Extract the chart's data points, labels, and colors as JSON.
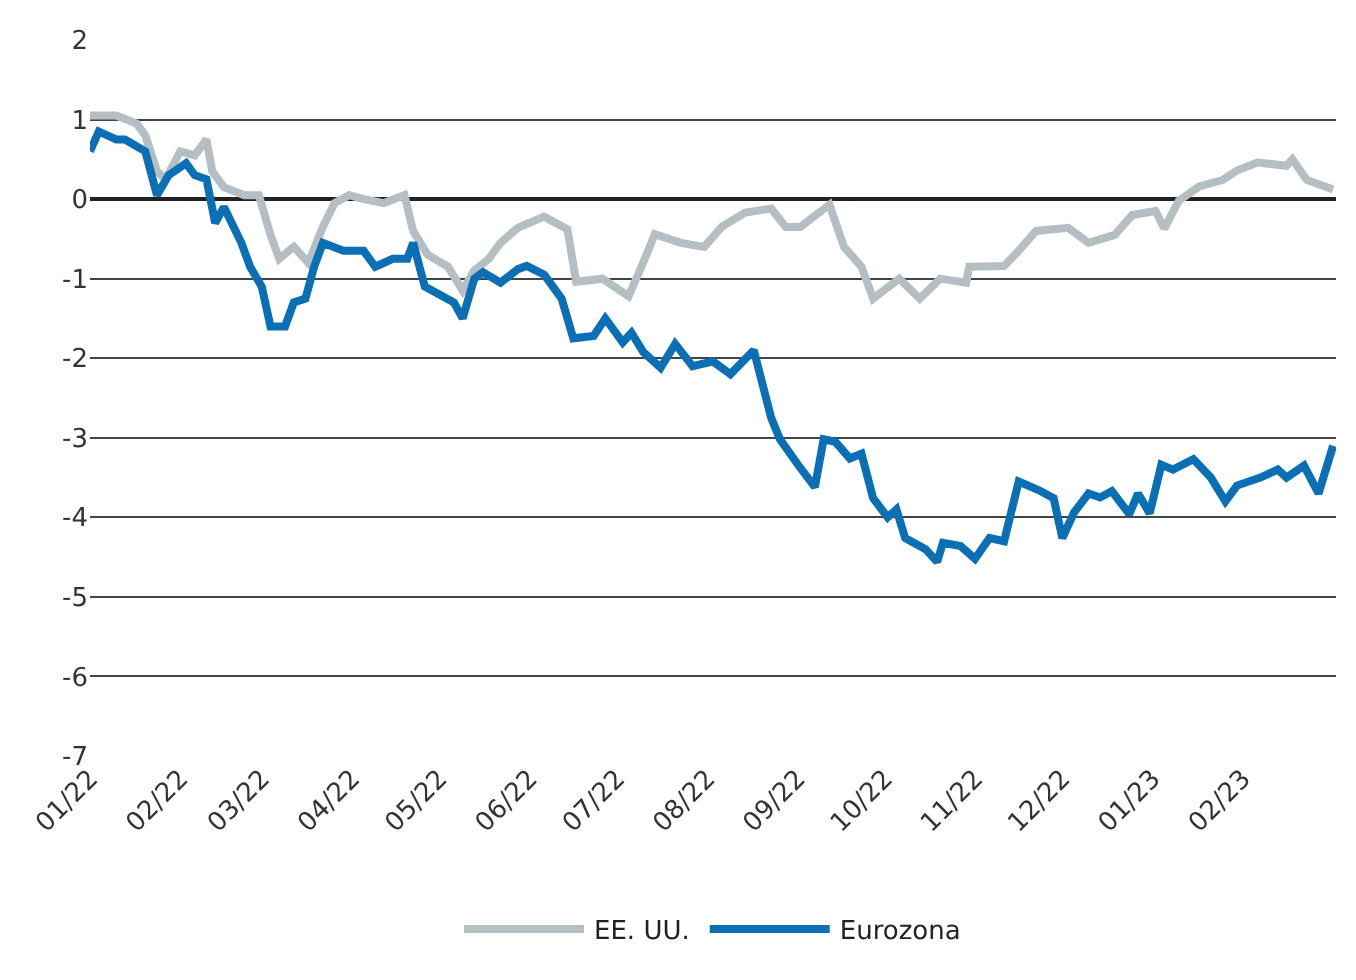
{
  "chart_data": {
    "type": "line",
    "xlim": [
      "2022-01-01",
      "2023-03-05"
    ],
    "xticks": [
      {
        "value": "2022-01-01",
        "label": "01/22"
      },
      {
        "value": "2022-02-01",
        "label": "02/22"
      },
      {
        "value": "2022-03-01",
        "label": "03/22"
      },
      {
        "value": "2022-04-01",
        "label": "04/22"
      },
      {
        "value": "2022-05-01",
        "label": "05/22"
      },
      {
        "value": "2022-06-01",
        "label": "06/22"
      },
      {
        "value": "2022-07-01",
        "label": "07/22"
      },
      {
        "value": "2022-08-01",
        "label": "08/22"
      },
      {
        "value": "2022-09-01",
        "label": "09/22"
      },
      {
        "value": "2022-10-01",
        "label": "10/22"
      },
      {
        "value": "2022-11-01",
        "label": "11/22"
      },
      {
        "value": "2022-12-01",
        "label": "12/22"
      },
      {
        "value": "2023-01-01",
        "label": "01/23"
      },
      {
        "value": "2023-02-01",
        "label": "02/23"
      }
    ],
    "ylim": [
      -7,
      2
    ],
    "yticks": [
      -7,
      -6,
      -5,
      -4,
      -3,
      -2,
      -1,
      0,
      1,
      2
    ],
    "grid": "y",
    "legend": "bottom",
    "marker": "none",
    "line_style": "solid",
    "series": [
      {
        "name": "EE. UU.",
        "color": "#b5bfc3",
        "x": [
          "2022-01-01",
          "2022-01-10",
          "2022-01-17",
          "2022-01-20",
          "2022-01-24",
          "2022-01-27",
          "2022-02-01",
          "2022-02-06",
          "2022-02-10",
          "2022-02-12",
          "2022-02-16",
          "2022-02-23",
          "2022-02-28",
          "2022-03-04",
          "2022-03-07",
          "2022-03-12",
          "2022-03-17",
          "2022-03-22",
          "2022-03-26",
          "2022-03-31",
          "2022-04-05",
          "2022-04-12",
          "2022-04-19",
          "2022-04-22",
          "2022-04-27",
          "2022-05-04",
          "2022-05-09",
          "2022-05-13",
          "2022-05-18",
          "2022-05-22",
          "2022-05-28",
          "2022-06-06",
          "2022-06-14",
          "2022-06-17",
          "2022-06-26",
          "2022-07-05",
          "2022-07-10",
          "2022-07-14",
          "2022-07-23",
          "2022-07-31",
          "2022-08-06",
          "2022-08-14",
          "2022-08-23",
          "2022-08-28",
          "2022-09-02",
          "2022-09-12",
          "2022-09-17",
          "2022-09-23",
          "2022-09-27",
          "2022-10-06",
          "2022-10-13",
          "2022-10-20",
          "2022-10-29",
          "2022-10-30",
          "2022-11-11",
          "2022-11-16",
          "2022-11-22",
          "2022-12-03",
          "2022-12-10",
          "2022-12-19",
          "2022-12-25",
          "2023-01-02",
          "2023-01-05",
          "2023-01-10",
          "2023-01-17",
          "2023-01-25",
          "2023-01-30",
          "2023-02-06",
          "2023-02-16",
          "2023-02-18",
          "2023-02-23",
          "2023-03-04"
        ],
        "values": [
          1.05,
          1.05,
          0.95,
          0.8,
          0.35,
          0.25,
          0.6,
          0.55,
          0.75,
          0.35,
          0.15,
          0.05,
          0.05,
          -0.45,
          -0.75,
          -0.6,
          -0.8,
          -0.35,
          -0.05,
          0.05,
          0.0,
          -0.05,
          0.05,
          -0.4,
          -0.7,
          -0.85,
          -1.15,
          -0.9,
          -0.75,
          -0.55,
          -0.36,
          -0.22,
          -0.38,
          -1.04,
          -1.0,
          -1.22,
          -0.8,
          -0.44,
          -0.55,
          -0.6,
          -0.35,
          -0.17,
          -0.12,
          -0.35,
          -0.35,
          -0.07,
          -0.6,
          -0.85,
          -1.25,
          -1.0,
          -1.25,
          -1.0,
          -1.05,
          -0.85,
          -0.84,
          -0.65,
          -0.4,
          -0.36,
          -0.55,
          -0.45,
          -0.2,
          -0.15,
          -0.37,
          -0.02,
          0.16,
          0.24,
          0.36,
          0.46,
          0.42,
          0.5,
          0.24,
          0.12
        ]
      },
      {
        "name": "Eurozona",
        "color": "#0a6fb4",
        "x": [
          "2022-01-01",
          "2022-01-04",
          "2022-01-10",
          "2022-01-13",
          "2022-01-20",
          "2022-01-24",
          "2022-01-28",
          "2022-02-03",
          "2022-02-06",
          "2022-02-10",
          "2022-02-13",
          "2022-02-16",
          "2022-02-22",
          "2022-02-25",
          "2022-03-01",
          "2022-03-04",
          "2022-03-09",
          "2022-03-12",
          "2022-03-16",
          "2022-03-19",
          "2022-03-22",
          "2022-03-29",
          "2022-04-05",
          "2022-04-09",
          "2022-04-12",
          "2022-04-15",
          "2022-04-20",
          "2022-04-22",
          "2022-04-26",
          "2022-05-01",
          "2022-05-06",
          "2022-05-09",
          "2022-05-13",
          "2022-05-16",
          "2022-05-22",
          "2022-05-28",
          "2022-05-31",
          "2022-06-06",
          "2022-06-12",
          "2022-06-16",
          "2022-06-23",
          "2022-06-27",
          "2022-07-03",
          "2022-07-06",
          "2022-07-10",
          "2022-07-16",
          "2022-07-21",
          "2022-07-27",
          "2022-08-03",
          "2022-08-09",
          "2022-08-17",
          "2022-08-23",
          "2022-08-26",
          "2022-09-02",
          "2022-09-07",
          "2022-09-10",
          "2022-09-14",
          "2022-09-19",
          "2022-09-23",
          "2022-09-27",
          "2022-10-02",
          "2022-10-05",
          "2022-10-08",
          "2022-10-15",
          "2022-10-19",
          "2022-10-21",
          "2022-10-27",
          "2022-11-01",
          "2022-11-06",
          "2022-11-11",
          "2022-11-16",
          "2022-11-23",
          "2022-11-28",
          "2022-12-01",
          "2022-12-05",
          "2022-12-10",
          "2022-12-14",
          "2022-12-18",
          "2022-12-24",
          "2022-12-27",
          "2022-12-31",
          "2023-01-04",
          "2023-01-08",
          "2023-01-15",
          "2023-01-21",
          "2023-01-26",
          "2023-01-30",
          "2023-02-07",
          "2023-02-13",
          "2023-02-16",
          "2023-02-22",
          "2023-02-27",
          "2023-03-04"
        ],
        "values": [
          0.6,
          0.85,
          0.75,
          0.75,
          0.6,
          0.05,
          0.3,
          0.45,
          0.3,
          0.25,
          -0.3,
          -0.1,
          -0.55,
          -0.85,
          -1.1,
          -1.6,
          -1.6,
          -1.3,
          -1.25,
          -0.85,
          -0.55,
          -0.65,
          -0.65,
          -0.85,
          -0.8,
          -0.75,
          -0.75,
          -0.55,
          -1.1,
          -1.2,
          -1.3,
          -1.5,
          -1.0,
          -0.92,
          -1.05,
          -0.88,
          -0.84,
          -0.95,
          -1.25,
          -1.75,
          -1.72,
          -1.5,
          -1.8,
          -1.68,
          -1.92,
          -2.12,
          -1.82,
          -2.1,
          -2.04,
          -2.2,
          -1.9,
          -2.75,
          -3.02,
          -3.38,
          -3.62,
          -3.02,
          -3.05,
          -3.26,
          -3.2,
          -3.76,
          -4.0,
          -3.9,
          -4.26,
          -4.4,
          -4.56,
          -4.32,
          -4.36,
          -4.52,
          -4.26,
          -4.3,
          -3.55,
          -3.66,
          -3.76,
          -4.26,
          -3.94,
          -3.7,
          -3.75,
          -3.67,
          -3.96,
          -3.7,
          -3.95,
          -3.34,
          -3.4,
          -3.27,
          -3.5,
          -3.8,
          -3.6,
          -3.5,
          -3.4,
          -3.5,
          -3.35,
          -3.7,
          -3.1
        ]
      }
    ]
  }
}
